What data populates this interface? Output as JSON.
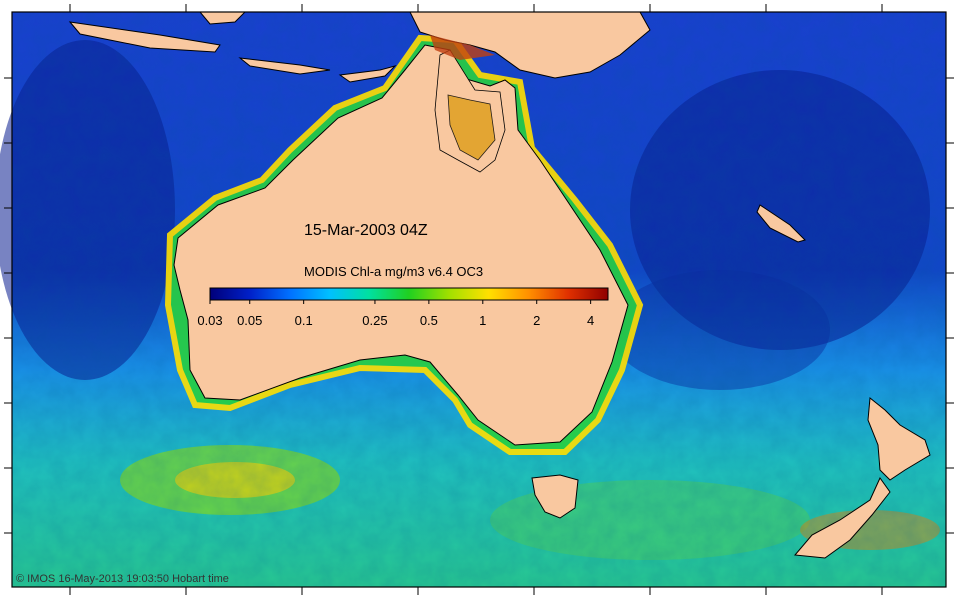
{
  "map": {
    "date_label": "15-Mar-2003 04Z",
    "copyright": "© IMOS 16-May-2013 19:03:50 Hobart time",
    "land_color": "#f9c8a0",
    "frame_color": "#000000"
  },
  "legend": {
    "title": "MODIS Chl-a mg/m3 v6.4 OC3",
    "min_value": 0.03,
    "max_value": 5,
    "scale": "log",
    "ticks": [
      {
        "value": 0.03,
        "label": "0.03"
      },
      {
        "value": 0.05,
        "label": "0.05"
      },
      {
        "value": 0.1,
        "label": "0.1"
      },
      {
        "value": 0.25,
        "label": "0.25"
      },
      {
        "value": 0.5,
        "label": "0.5"
      },
      {
        "value": 1,
        "label": "1"
      },
      {
        "value": 2,
        "label": "2"
      },
      {
        "value": 4,
        "label": "4"
      }
    ],
    "colors": [
      "#00007a",
      "#0020c8",
      "#0070ff",
      "#00c0ff",
      "#00e0a0",
      "#20d020",
      "#a0e000",
      "#ffe000",
      "#ff9000",
      "#e03000",
      "#900000"
    ]
  }
}
